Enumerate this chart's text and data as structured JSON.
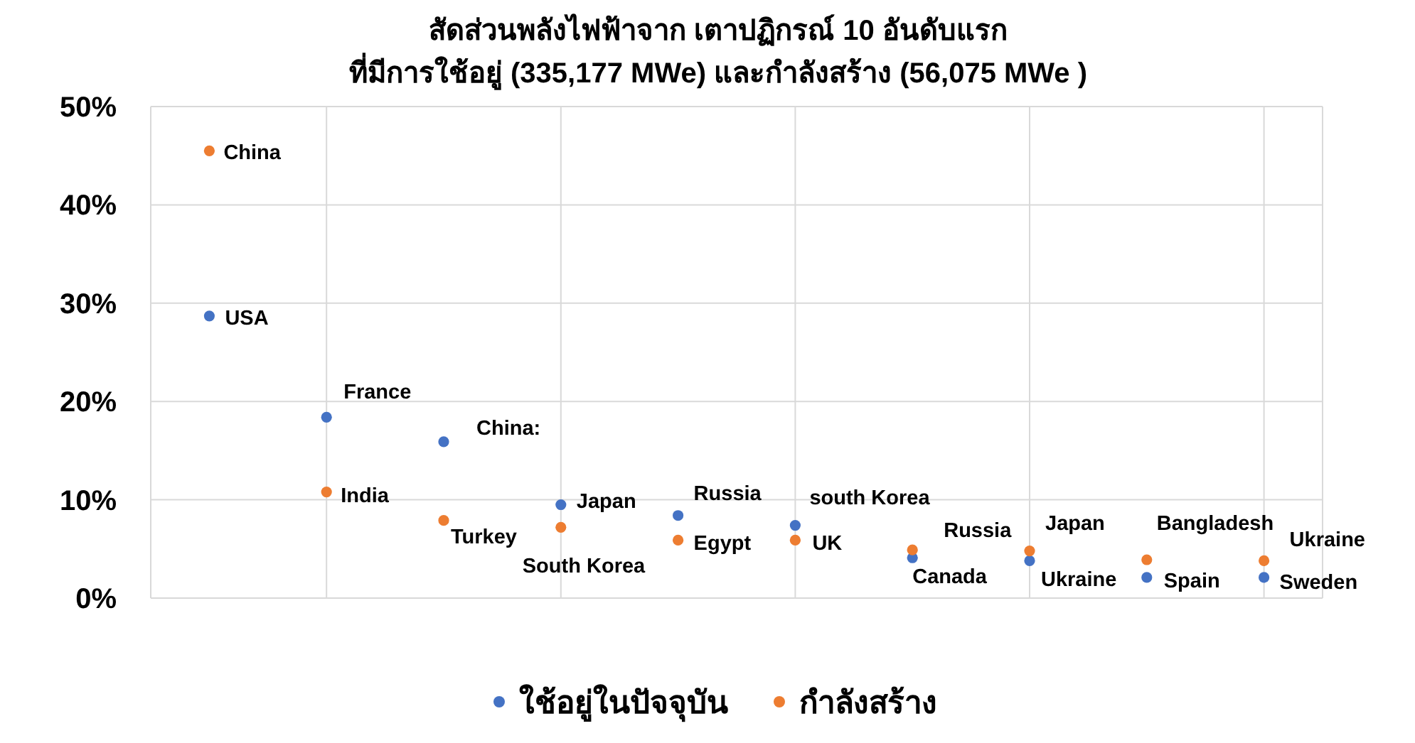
{
  "chart_data": {
    "type": "scatter",
    "title": "สัดส่วนพลังไฟฟ้าจาก เตาปฏิกรณ์ 10 อันดับแรก\nที่มีการใช้อยู่ (335,177 MWe) และกำลังสร้าง (56,075 MWe )",
    "categories": [
      null,
      null,
      null,
      null,
      null,
      null,
      null,
      null,
      null,
      null
    ],
    "series": [
      {
        "name": "ใช้อยู่ในปัจจุบัน",
        "color": "#4472c4",
        "values": [
          28.7,
          18.4,
          15.9,
          9.5,
          8.4,
          7.4,
          4.1,
          3.8,
          2.1,
          2.1
        ],
        "value_labels": [
          "USA",
          "France",
          "China:",
          "Japan",
          "Russia",
          "south Korea",
          "Canada",
          "Ukraine",
          "Spain",
          "Sweden"
        ]
      },
      {
        "name": "กำลังสร้าง",
        "color": "#ed7d31",
        "values": [
          45.5,
          10.8,
          7.9,
          7.2,
          5.9,
          5.9,
          4.9,
          4.8,
          3.9,
          3.8
        ],
        "value_labels": [
          "China",
          "India",
          "Turkey",
          "South Korea",
          "Egypt",
          "UK",
          "Russia",
          "Japan",
          "Bangladesh",
          "Ukraine"
        ]
      }
    ],
    "ylim": [
      0,
      50
    ],
    "yticks": [
      {
        "value": 0,
        "label": "0%"
      },
      {
        "value": 10,
        "label": "10%"
      },
      {
        "value": 20,
        "label": "20%"
      },
      {
        "value": 30,
        "label": "30%"
      },
      {
        "value": 40,
        "label": "40%"
      },
      {
        "value": 50,
        "label": "50%"
      }
    ],
    "tick_labels": "y",
    "grid": true,
    "marker": "circle",
    "legend": "bottom"
  }
}
